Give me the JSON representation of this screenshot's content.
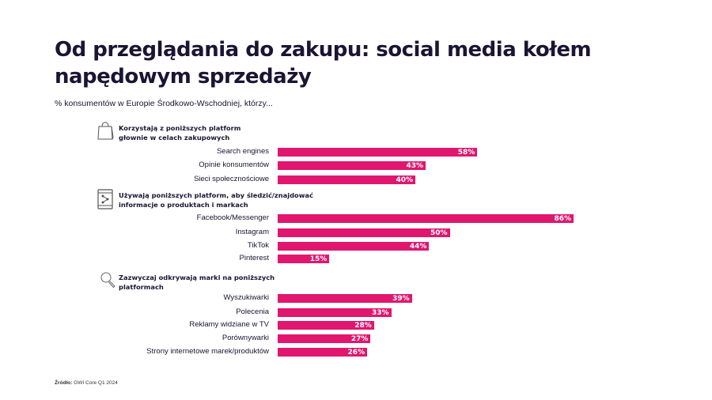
{
  "title": "Od przeglądania do zakupu: social media kołem napędowym sprzedaży",
  "subtitle": "% konsumentów w Europie Środkowo-Wschodniej, którzy...",
  "source": {
    "label": "Źródło:",
    "text": "GWI Core Q1 2024"
  },
  "colors": {
    "bar": "#e0166f",
    "text": "#1b1433"
  },
  "chart_data": {
    "type": "bar",
    "orientation": "horizontal",
    "title": "Od przeglądania do zakupu: social media kołem napędowym sprzedaży",
    "subtitle": "% konsumentów w Europie Środkowo-Wschodniej, którzy...",
    "xlim": [
      0,
      100
    ],
    "unit": "%",
    "groups": [
      {
        "heading": "Korzystają z poniższych platform głownie w celach zakupowych",
        "icon": "shopping-bag-icon",
        "categories": [
          "Search engines",
          "Opinie konsumentów",
          "Sieci społecznościowe"
        ],
        "values": [
          58,
          43,
          40
        ],
        "labels": [
          "58%",
          "43%",
          "40%"
        ]
      },
      {
        "heading": "Używają poniższych platform, aby śledzić/znajdować informacje o produktach i markach",
        "icon": "tablet-share-icon",
        "categories": [
          "Facebook/Messenger",
          "Instagram",
          "TikTok",
          "Pinterest"
        ],
        "values": [
          86,
          50,
          44,
          15
        ],
        "labels": [
          "86%",
          "50%",
          "44%",
          "15%"
        ]
      },
      {
        "heading": "Zazwyczaj odkrywają marki na poniższych platformach",
        "icon": "search-icon",
        "categories": [
          "Wyszukiwarki",
          "Polecenia",
          "Reklamy widziane w TV",
          "Porównywarki",
          "Strony internetowe marek/produktów"
        ],
        "values": [
          39,
          33,
          28,
          27,
          26
        ],
        "labels": [
          "39%",
          "33%",
          "28%",
          "27%",
          "26%"
        ]
      }
    ]
  }
}
